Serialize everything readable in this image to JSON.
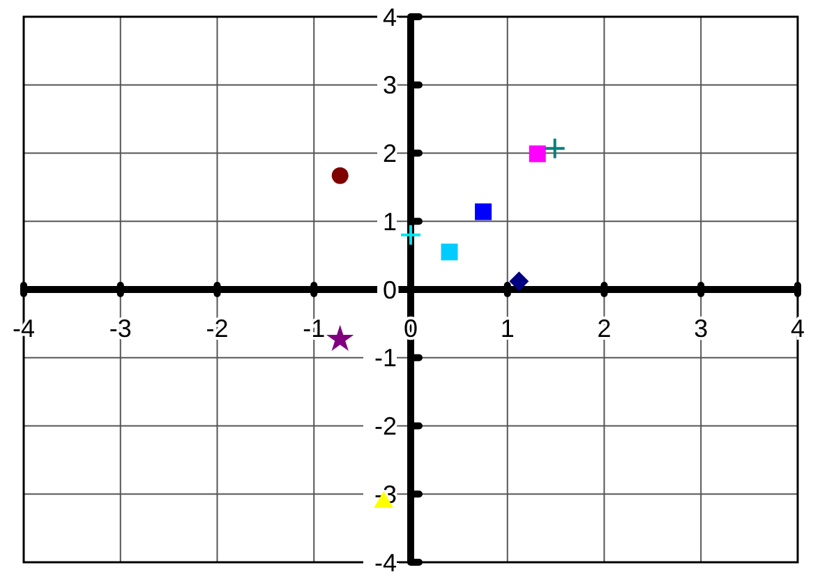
{
  "chart_data": {
    "type": "scatter",
    "xlim": [
      -4,
      4
    ],
    "ylim": [
      -4,
      4
    ],
    "xticks": [
      -4,
      -3,
      -2,
      -1,
      0,
      1,
      2,
      3,
      4
    ],
    "yticks": [
      -4,
      -3,
      -2,
      -1,
      0,
      1,
      2,
      3,
      4
    ],
    "grid": true,
    "series": [
      {
        "color": "#800000",
        "marker": "circle",
        "x": [
          -0.73
        ],
        "values": [
          1.67
        ]
      },
      {
        "color": "#ff00ff",
        "marker": "square",
        "x": [
          1.31
        ],
        "values": [
          1.99
        ]
      },
      {
        "color": "#008080",
        "marker": "cross",
        "x": [
          1.49
        ],
        "values": [
          2.07
        ]
      },
      {
        "color": "#0000ff",
        "marker": "square",
        "x": [
          0.75
        ],
        "values": [
          1.14
        ]
      },
      {
        "color": "#00e5ee",
        "marker": "cross",
        "x": [
          0
        ],
        "values": [
          0.8
        ]
      },
      {
        "color": "#00ccff",
        "marker": "square",
        "x": [
          0.4
        ],
        "values": [
          0.55
        ]
      },
      {
        "color": "#000080",
        "marker": "diamond",
        "x": [
          1.12
        ],
        "values": [
          0.12
        ]
      },
      {
        "color": "#800080",
        "marker": "star",
        "x": [
          -0.73
        ],
        "values": [
          -0.73
        ]
      },
      {
        "color": "#ffff00",
        "marker": "triangle",
        "x": [
          -0.28
        ],
        "values": [
          -3.1
        ]
      }
    ]
  }
}
